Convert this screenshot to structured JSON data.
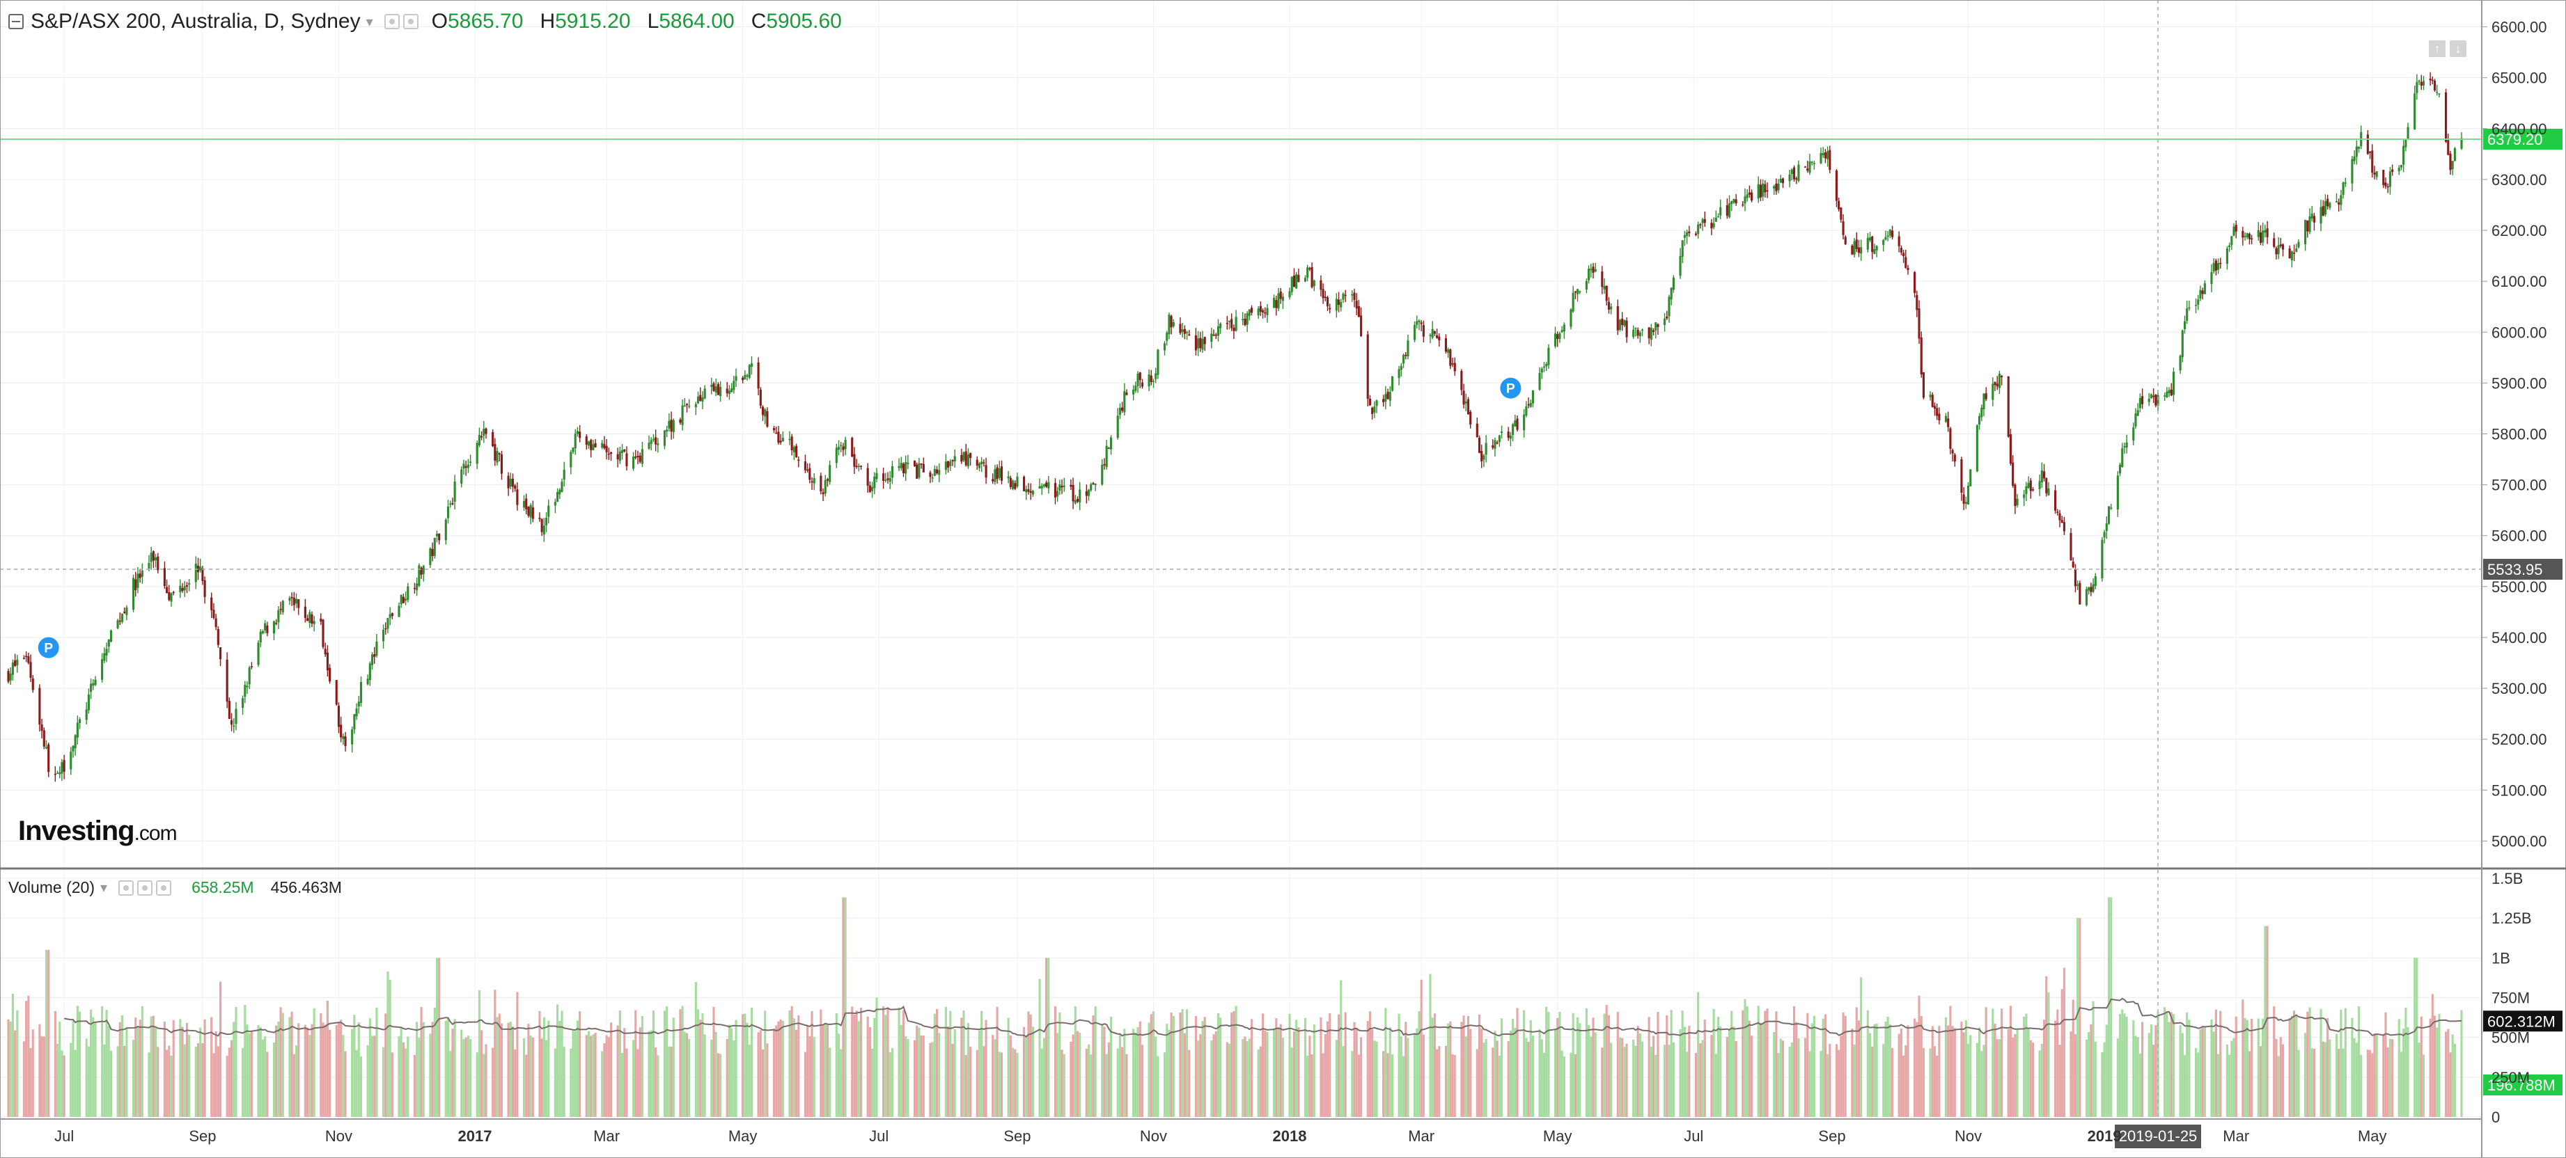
{
  "legend": {
    "symbol": "S&P/ASX 200, Australia, D, Sydney",
    "open_label": "O",
    "open": "5865.70",
    "high_label": "H",
    "high": "5915.20",
    "low_label": "L",
    "low": "5864.00",
    "close_label": "C",
    "close": "5905.60"
  },
  "volume_legend": {
    "label": "Volume (20)",
    "value1": "658.25M",
    "value2": "456.463M"
  },
  "logo": {
    "main": "Investing",
    "suffix": ".com"
  },
  "colors": {
    "up": "#2e8b2e",
    "down": "#8b1a1a",
    "vol_up": "#a6dca0",
    "vol_down": "#e8a7a7",
    "price_tag": "#1fcc44",
    "crosshair_tag": "#555555"
  },
  "badges": [
    "P",
    "P"
  ],
  "price_tags": {
    "last": "6379.20",
    "crosshair": "5533.95",
    "vol_last": "196.788M",
    "vol_ma": "602.312M",
    "date": "2019-01-25"
  },
  "chart_data": {
    "type": "candlestick",
    "title": "S&P/ASX 200, Australia, D, Sydney",
    "ylim": [
      4950,
      6650
    ],
    "y_ticks": [
      5000,
      5100,
      5200,
      5300,
      5400,
      5500,
      5600,
      5700,
      5800,
      5900,
      6000,
      6100,
      6200,
      6300,
      6400,
      6500,
      6600
    ],
    "x_ticks": [
      "Jul",
      "Sep",
      "Nov",
      "2017",
      "Mar",
      "May",
      "Jul",
      "Sep",
      "Nov",
      "2018",
      "Mar",
      "May",
      "Jul",
      "Sep",
      "Nov",
      "2019",
      "Mar",
      "May"
    ],
    "x_tick_dates": [
      "2016-07-01",
      "2016-09-01",
      "2016-11-01",
      "2017-01-01",
      "2017-03-01",
      "2017-05-01",
      "2017-07-01",
      "2017-09-01",
      "2017-11-01",
      "2018-01-01",
      "2018-03-01",
      "2018-05-01",
      "2018-07-01",
      "2018-09-01",
      "2018-11-01",
      "2019-01-01",
      "2019-03-01",
      "2019-05-01"
    ],
    "date_range": [
      "2016-06-06",
      "2019-06-10"
    ],
    "close_path": [
      {
        "date": "2016-06-06",
        "close": 5330
      },
      {
        "date": "2016-06-14",
        "close": 5370
      },
      {
        "date": "2016-06-24",
        "close": 5150
      },
      {
        "date": "2016-06-28",
        "close": 5120
      },
      {
        "date": "2016-07-08",
        "close": 5230
      },
      {
        "date": "2016-07-20",
        "close": 5380
      },
      {
        "date": "2016-08-01",
        "close": 5500
      },
      {
        "date": "2016-08-10",
        "close": 5560
      },
      {
        "date": "2016-08-18",
        "close": 5480
      },
      {
        "date": "2016-08-30",
        "close": 5540
      },
      {
        "date": "2016-09-08",
        "close": 5400
      },
      {
        "date": "2016-09-14",
        "close": 5220
      },
      {
        "date": "2016-09-28",
        "close": 5410
      },
      {
        "date": "2016-10-10",
        "close": 5470
      },
      {
        "date": "2016-10-24",
        "close": 5420
      },
      {
        "date": "2016-11-04",
        "close": 5170
      },
      {
        "date": "2016-11-10",
        "close": 5290
      },
      {
        "date": "2016-11-24",
        "close": 5440
      },
      {
        "date": "2016-12-12",
        "close": 5560
      },
      {
        "date": "2016-12-28",
        "close": 5750
      },
      {
        "date": "2017-01-06",
        "close": 5800
      },
      {
        "date": "2017-01-20",
        "close": 5670
      },
      {
        "date": "2017-02-01",
        "close": 5620
      },
      {
        "date": "2017-02-16",
        "close": 5800
      },
      {
        "date": "2017-03-01",
        "close": 5760
      },
      {
        "date": "2017-03-14",
        "close": 5750
      },
      {
        "date": "2017-03-30",
        "close": 5820
      },
      {
        "date": "2017-04-10",
        "close": 5870
      },
      {
        "date": "2017-04-24",
        "close": 5890
      },
      {
        "date": "2017-05-05",
        "close": 5930
      },
      {
        "date": "2017-05-12",
        "close": 5820
      },
      {
        "date": "2017-05-24",
        "close": 5770
      },
      {
        "date": "2017-06-05",
        "close": 5680
      },
      {
        "date": "2017-06-14",
        "close": 5790
      },
      {
        "date": "2017-06-26",
        "close": 5700
      },
      {
        "date": "2017-07-10",
        "close": 5740
      },
      {
        "date": "2017-07-24",
        "close": 5720
      },
      {
        "date": "2017-08-08",
        "close": 5750
      },
      {
        "date": "2017-08-22",
        "close": 5720
      },
      {
        "date": "2017-09-05",
        "close": 5700
      },
      {
        "date": "2017-09-20",
        "close": 5690
      },
      {
        "date": "2017-10-02",
        "close": 5670
      },
      {
        "date": "2017-10-10",
        "close": 5750
      },
      {
        "date": "2017-10-20",
        "close": 5890
      },
      {
        "date": "2017-11-01",
        "close": 5920
      },
      {
        "date": "2017-11-08",
        "close": 6020
      },
      {
        "date": "2017-11-20",
        "close": 5980
      },
      {
        "date": "2017-12-01",
        "close": 6000
      },
      {
        "date": "2017-12-14",
        "close": 6030
      },
      {
        "date": "2017-12-28",
        "close": 6070
      },
      {
        "date": "2018-01-08",
        "close": 6120
      },
      {
        "date": "2018-01-20",
        "close": 6050
      },
      {
        "date": "2018-01-30",
        "close": 6080
      },
      {
        "date": "2018-02-06",
        "close": 5850
      },
      {
        "date": "2018-02-15",
        "close": 5890
      },
      {
        "date": "2018-02-26",
        "close": 6010
      },
      {
        "date": "2018-03-08",
        "close": 6000
      },
      {
        "date": "2018-03-16",
        "close": 5930
      },
      {
        "date": "2018-03-28",
        "close": 5760
      },
      {
        "date": "2018-04-06",
        "close": 5790
      },
      {
        "date": "2018-04-18",
        "close": 5850
      },
      {
        "date": "2018-04-30",
        "close": 5990
      },
      {
        "date": "2018-05-10",
        "close": 6090
      },
      {
        "date": "2018-05-18",
        "close": 6120
      },
      {
        "date": "2018-05-28",
        "close": 6020
      },
      {
        "date": "2018-06-06",
        "close": 5990
      },
      {
        "date": "2018-06-18",
        "close": 6020
      },
      {
        "date": "2018-06-28",
        "close": 6200
      },
      {
        "date": "2018-07-10",
        "close": 6220
      },
      {
        "date": "2018-07-20",
        "close": 6260
      },
      {
        "date": "2018-07-30",
        "close": 6280
      },
      {
        "date": "2018-08-10",
        "close": 6290
      },
      {
        "date": "2018-08-20",
        "close": 6330
      },
      {
        "date": "2018-08-30",
        "close": 6340
      },
      {
        "date": "2018-09-07",
        "close": 6160
      },
      {
        "date": "2018-09-18",
        "close": 6170
      },
      {
        "date": "2018-09-28",
        "close": 6200
      },
      {
        "date": "2018-10-08",
        "close": 6080
      },
      {
        "date": "2018-10-12",
        "close": 5880
      },
      {
        "date": "2018-10-22",
        "close": 5820
      },
      {
        "date": "2018-10-30",
        "close": 5650
      },
      {
        "date": "2018-11-08",
        "close": 5880
      },
      {
        "date": "2018-11-16",
        "close": 5920
      },
      {
        "date": "2018-11-22",
        "close": 5660
      },
      {
        "date": "2018-12-04",
        "close": 5720
      },
      {
        "date": "2018-12-12",
        "close": 5640
      },
      {
        "date": "2018-12-21",
        "close": 5470
      },
      {
        "date": "2018-12-28",
        "close": 5520
      },
      {
        "date": "2019-01-08",
        "close": 5750
      },
      {
        "date": "2019-01-18",
        "close": 5870
      },
      {
        "date": "2019-01-30",
        "close": 5870
      },
      {
        "date": "2019-02-08",
        "close": 6050
      },
      {
        "date": "2019-02-20",
        "close": 6130
      },
      {
        "date": "2019-03-01",
        "close": 6200
      },
      {
        "date": "2019-03-12",
        "close": 6190
      },
      {
        "date": "2019-03-25",
        "close": 6150
      },
      {
        "date": "2019-04-04",
        "close": 6230
      },
      {
        "date": "2019-04-16",
        "close": 6260
      },
      {
        "date": "2019-04-26",
        "close": 6380
      },
      {
        "date": "2019-05-06",
        "close": 6280
      },
      {
        "date": "2019-05-14",
        "close": 6340
      },
      {
        "date": "2019-05-22",
        "close": 6500
      },
      {
        "date": "2019-05-30",
        "close": 6480
      },
      {
        "date": "2019-06-05",
        "close": 6330
      },
      {
        "date": "2019-06-10",
        "close": 6379.2
      }
    ],
    "volume_ylim": [
      0,
      1500000000
    ],
    "volume_ticks": [
      "0",
      "250M",
      "500M",
      "750M",
      "1B",
      "1.25B",
      "1.5B"
    ],
    "volume_tick_values": [
      0,
      250000000,
      500000000,
      750000000,
      1000000000,
      1250000000,
      1500000000
    ],
    "volume_ma_period": 20,
    "volume_spikes": [
      {
        "date": "2016-06-24",
        "volume": 1050000000
      },
      {
        "date": "2016-12-16",
        "volume": 1000000000
      },
      {
        "date": "2017-06-16",
        "volume": 1380000000
      },
      {
        "date": "2017-09-15",
        "volume": 1000000000
      },
      {
        "date": "2018-12-21",
        "volume": 1250000000
      },
      {
        "date": "2019-01-04",
        "volume": 1380000000
      },
      {
        "date": "2019-03-15",
        "volume": 1200000000
      },
      {
        "date": "2019-05-20",
        "volume": 1000000000
      }
    ],
    "last_price_line": 6379.2,
    "crosshair": {
      "price": 5533.95,
      "date": "2019-01-25"
    },
    "badge_dates": [
      {
        "date": "2016-06-24",
        "price": 5380
      },
      {
        "date": "2018-04-10",
        "price": 5890
      }
    ]
  }
}
